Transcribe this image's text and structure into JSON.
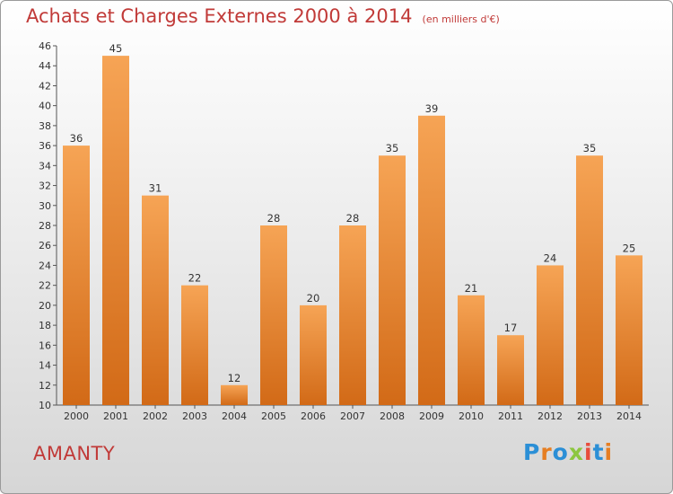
{
  "title": "Achats et Charges Externes 2000 à 2014",
  "subtitle": "(en milliers d'€)",
  "commune": "AMANTY",
  "logo": {
    "letters": [
      "P",
      "r",
      "o",
      "x",
      "i",
      "t",
      "i"
    ],
    "colors": [
      "#2b8fd6",
      "#e67e22",
      "#2b8fd6",
      "#8cc63f",
      "#e84c3d",
      "#2b8fd6",
      "#e67e22"
    ]
  },
  "colors": {
    "bar_top": "#f6a455",
    "bar_bottom": "#d26a17",
    "text_accent": "#c13a38"
  },
  "chart_data": {
    "type": "bar",
    "categories": [
      "2000",
      "2001",
      "2002",
      "2003",
      "2004",
      "2005",
      "2006",
      "2007",
      "2008",
      "2009",
      "2010",
      "2011",
      "2012",
      "2013",
      "2014"
    ],
    "values": [
      36,
      45,
      31,
      22,
      12,
      28,
      20,
      28,
      35,
      39,
      21,
      17,
      24,
      35,
      25
    ],
    "ylim": [
      10,
      46
    ],
    "yticks": [
      10,
      12,
      14,
      16,
      18,
      20,
      22,
      24,
      26,
      28,
      30,
      32,
      34,
      36,
      38,
      40,
      42,
      44,
      46
    ],
    "grid": false,
    "data_labels": true
  }
}
